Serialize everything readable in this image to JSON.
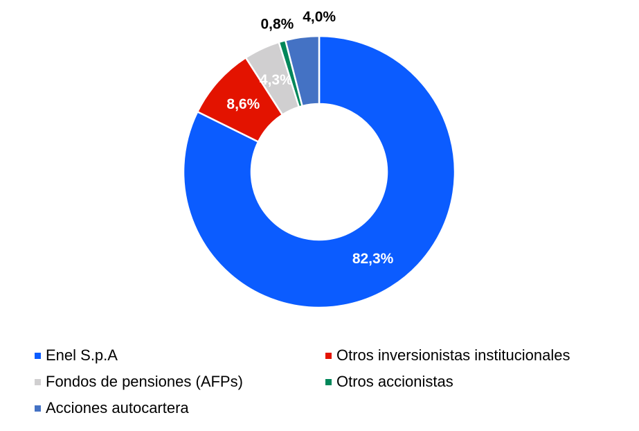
{
  "chart_data": {
    "type": "pie",
    "variant": "donut",
    "title": "",
    "unit": "%",
    "start": "top",
    "direction": "clockwise",
    "legend_placement": "bottom",
    "slices": [
      {
        "name": "Enel S.p.A",
        "value": 82.3,
        "label": "82,3%",
        "color": "#0B5CFF",
        "label_color": "#ffffff",
        "label_position": "inside"
      },
      {
        "name": "Otros inversionistas institucionales",
        "value": 8.6,
        "label": "8,6%",
        "color": "#E31300",
        "label_color": "#ffffff",
        "label_position": "inside"
      },
      {
        "name": "Fondos de pensiones (AFPs)",
        "value": 4.3,
        "label": "4,3%",
        "color": "#D0CFD0",
        "label_color": "#ffffff",
        "label_position": "inside"
      },
      {
        "name": "Otros accionistas",
        "value": 0.8,
        "label": "0,8%",
        "color": "#00875A",
        "label_color": "#000000",
        "label_position": "outside"
      },
      {
        "name": "Acciones autocartera",
        "value": 4.0,
        "label": "4,0%",
        "color": "#4472C4",
        "label_color": "#000000",
        "label_position": "outside"
      }
    ]
  }
}
